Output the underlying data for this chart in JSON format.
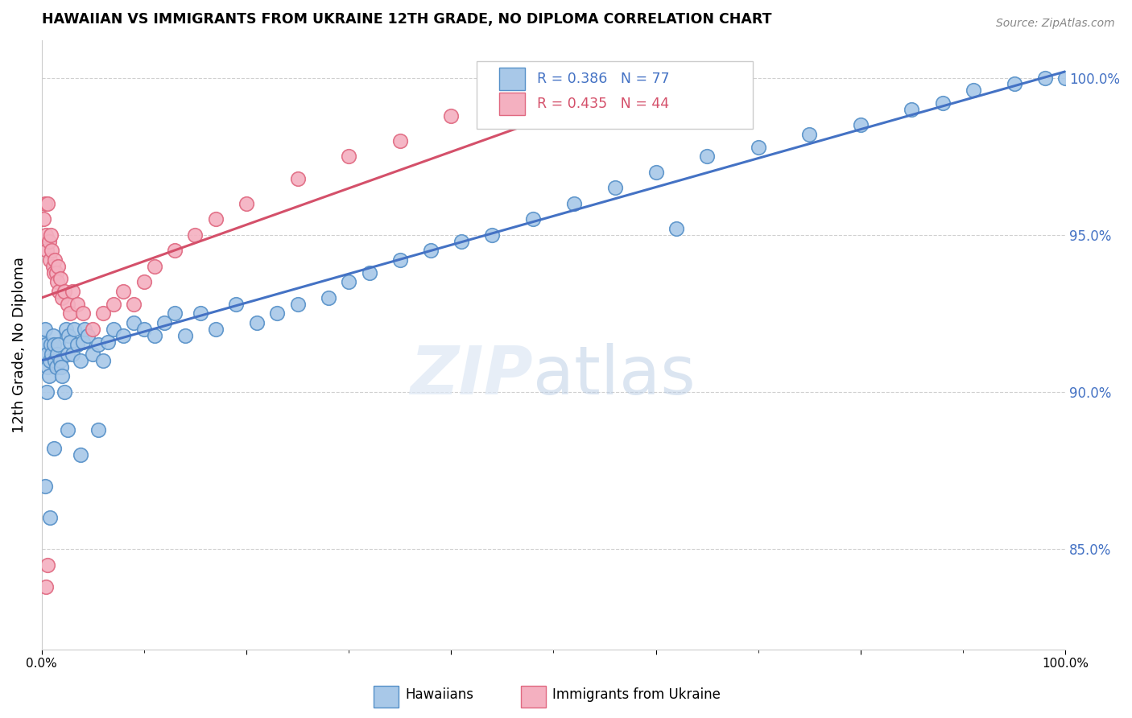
{
  "title": "HAWAIIAN VS IMMIGRANTS FROM UKRAINE 12TH GRADE, NO DIPLOMA CORRELATION CHART",
  "source": "Source: ZipAtlas.com",
  "ylabel": "12th Grade, No Diploma",
  "ytick_labels": [
    "100.0%",
    "95.0%",
    "90.0%",
    "85.0%"
  ],
  "ytick_values": [
    1.0,
    0.95,
    0.9,
    0.85
  ],
  "xmin": 0.0,
  "xmax": 1.0,
  "ymin": 0.818,
  "ymax": 1.012,
  "blue_R": 0.386,
  "blue_N": 77,
  "pink_R": 0.435,
  "pink_N": 44,
  "blue_color": "#a8c8e8",
  "pink_color": "#f4b0c0",
  "blue_edge_color": "#5590c8",
  "pink_edge_color": "#e06880",
  "blue_line_color": "#4472c4",
  "pink_line_color": "#d4506a",
  "legend_blue_text_color": "#4472c4",
  "legend_pink_text_color": "#d4506a",
  "right_axis_color": "#4472c4",
  "background_color": "#ffffff",
  "grid_color": "#d0d0d0",
  "blue_trend_x0": 0.0,
  "blue_trend_x1": 1.0,
  "blue_trend_y0": 0.91,
  "blue_trend_y1": 1.002,
  "pink_trend_x0": 0.0,
  "pink_trend_x1": 0.62,
  "pink_trend_y0": 0.93,
  "pink_trend_y1": 1.002,
  "blue_x": [
    0.002,
    0.003,
    0.004,
    0.005,
    0.005,
    0.006,
    0.007,
    0.008,
    0.009,
    0.01,
    0.011,
    0.012,
    0.013,
    0.014,
    0.015,
    0.016,
    0.018,
    0.019,
    0.02,
    0.022,
    0.024,
    0.025,
    0.026,
    0.028,
    0.03,
    0.032,
    0.035,
    0.038,
    0.04,
    0.042,
    0.045,
    0.05,
    0.055,
    0.06,
    0.065,
    0.07,
    0.08,
    0.09,
    0.1,
    0.11,
    0.12,
    0.13,
    0.14,
    0.155,
    0.17,
    0.19,
    0.21,
    0.23,
    0.25,
    0.28,
    0.3,
    0.32,
    0.35,
    0.38,
    0.41,
    0.44,
    0.48,
    0.52,
    0.56,
    0.6,
    0.65,
    0.7,
    0.75,
    0.8,
    0.85,
    0.88,
    0.91,
    0.95,
    0.98,
    1.0,
    0.003,
    0.008,
    0.012,
    0.025,
    0.038,
    0.055,
    0.62
  ],
  "blue_y": [
    0.916,
    0.92,
    0.915,
    0.912,
    0.9,
    0.908,
    0.905,
    0.91,
    0.915,
    0.912,
    0.918,
    0.915,
    0.91,
    0.908,
    0.912,
    0.915,
    0.91,
    0.908,
    0.905,
    0.9,
    0.92,
    0.912,
    0.918,
    0.916,
    0.912,
    0.92,
    0.915,
    0.91,
    0.916,
    0.92,
    0.918,
    0.912,
    0.915,
    0.91,
    0.916,
    0.92,
    0.918,
    0.922,
    0.92,
    0.918,
    0.922,
    0.925,
    0.918,
    0.925,
    0.92,
    0.928,
    0.922,
    0.925,
    0.928,
    0.93,
    0.935,
    0.938,
    0.942,
    0.945,
    0.948,
    0.95,
    0.955,
    0.96,
    0.965,
    0.97,
    0.975,
    0.978,
    0.982,
    0.985,
    0.99,
    0.992,
    0.996,
    0.998,
    1.0,
    1.0,
    0.87,
    0.86,
    0.882,
    0.888,
    0.88,
    0.888,
    0.952
  ],
  "pink_x": [
    0.002,
    0.003,
    0.004,
    0.005,
    0.006,
    0.007,
    0.008,
    0.009,
    0.01,
    0.011,
    0.012,
    0.013,
    0.014,
    0.015,
    0.016,
    0.017,
    0.018,
    0.02,
    0.022,
    0.025,
    0.028,
    0.03,
    0.035,
    0.04,
    0.05,
    0.06,
    0.07,
    0.08,
    0.09,
    0.1,
    0.11,
    0.13,
    0.15,
    0.17,
    0.2,
    0.25,
    0.3,
    0.35,
    0.4,
    0.5,
    0.6,
    0.62,
    0.004,
    0.006
  ],
  "pink_y": [
    0.955,
    0.96,
    0.95,
    0.945,
    0.96,
    0.948,
    0.942,
    0.95,
    0.945,
    0.94,
    0.938,
    0.942,
    0.938,
    0.935,
    0.94,
    0.932,
    0.936,
    0.93,
    0.932,
    0.928,
    0.925,
    0.932,
    0.928,
    0.925,
    0.92,
    0.925,
    0.928,
    0.932,
    0.928,
    0.935,
    0.94,
    0.945,
    0.95,
    0.955,
    0.96,
    0.968,
    0.975,
    0.98,
    0.988,
    0.992,
    0.998,
    1.0,
    0.838,
    0.845
  ]
}
